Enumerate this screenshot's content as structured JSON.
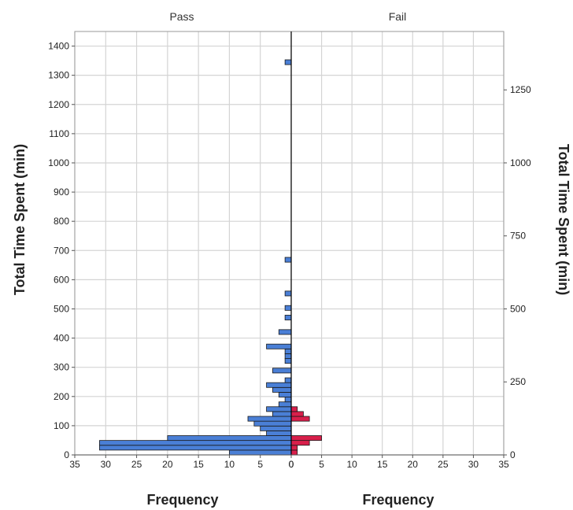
{
  "chart_data": {
    "type": "bar",
    "subtype": "population-pyramid",
    "panels": [
      "Pass",
      "Fail"
    ],
    "xlabel_left": "Frequency",
    "xlabel_right": "Frequency",
    "ylabel_left": "Total Time Spent (min)",
    "ylabel_right": "Total Time Spent (min)",
    "xlim": [
      0,
      35
    ],
    "x_ticks": [
      0,
      5,
      10,
      15,
      20,
      25,
      30,
      35
    ],
    "ylim": [
      0,
      1450
    ],
    "y_ticks_left": [
      0,
      100,
      200,
      300,
      400,
      500,
      600,
      700,
      800,
      900,
      1000,
      1100,
      1200,
      1300,
      1400
    ],
    "y_ticks_right": [
      0,
      250,
      500,
      750,
      1000,
      1250
    ],
    "grid": true,
    "bin_width": 16.5,
    "series": [
      {
        "name": "Pass",
        "color": "#4a7fd6",
        "bins": [
          {
            "y_start": 0,
            "count": 10
          },
          {
            "y_start": 16.5,
            "count": 31
          },
          {
            "y_start": 33,
            "count": 31
          },
          {
            "y_start": 49.5,
            "count": 20
          },
          {
            "y_start": 66,
            "count": 4
          },
          {
            "y_start": 82.5,
            "count": 5
          },
          {
            "y_start": 99,
            "count": 6
          },
          {
            "y_start": 115.5,
            "count": 7
          },
          {
            "y_start": 132,
            "count": 3
          },
          {
            "y_start": 148.5,
            "count": 4
          },
          {
            "y_start": 165,
            "count": 2
          },
          {
            "y_start": 181.5,
            "count": 1
          },
          {
            "y_start": 198,
            "count": 2
          },
          {
            "y_start": 214.5,
            "count": 3
          },
          {
            "y_start": 231,
            "count": 4
          },
          {
            "y_start": 247.5,
            "count": 1
          },
          {
            "y_start": 280.5,
            "count": 3
          },
          {
            "y_start": 313.5,
            "count": 1
          },
          {
            "y_start": 330,
            "count": 1
          },
          {
            "y_start": 346.5,
            "count": 1
          },
          {
            "y_start": 363,
            "count": 4
          },
          {
            "y_start": 412.5,
            "count": 2
          },
          {
            "y_start": 462,
            "count": 1
          },
          {
            "y_start": 495,
            "count": 1
          },
          {
            "y_start": 544.5,
            "count": 1
          },
          {
            "y_start": 660,
            "count": 1
          },
          {
            "y_start": 1336.5,
            "count": 1
          }
        ]
      },
      {
        "name": "Fail",
        "color": "#d81f4b",
        "bins": [
          {
            "y_start": 0,
            "count": 1
          },
          {
            "y_start": 16.5,
            "count": 1
          },
          {
            "y_start": 33,
            "count": 3
          },
          {
            "y_start": 49.5,
            "count": 5
          },
          {
            "y_start": 115.5,
            "count": 3
          },
          {
            "y_start": 132,
            "count": 2
          },
          {
            "y_start": 148.5,
            "count": 1
          }
        ]
      }
    ]
  }
}
